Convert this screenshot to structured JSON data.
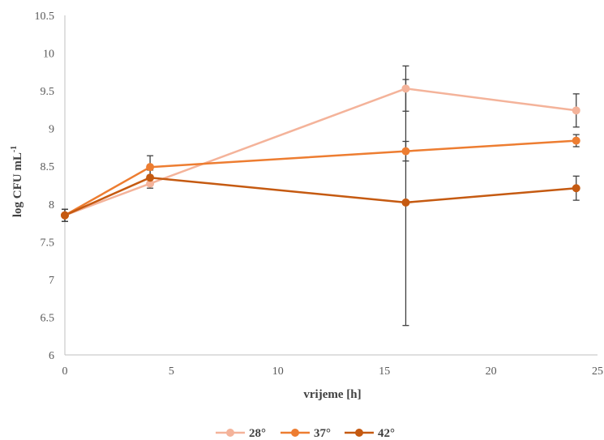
{
  "chart_data": {
    "type": "line",
    "title": "",
    "xlabel": "vrijeme [h]",
    "ylabel_main": "log CFU mL",
    "ylabel_sup": "-1",
    "xlim": [
      0,
      25
    ],
    "ylim": [
      6,
      10.5
    ],
    "xticks": [
      "0",
      "5",
      "10",
      "15",
      "20",
      "25"
    ],
    "yticks": [
      "6",
      "6.5",
      "7",
      "7.5",
      "8",
      "8.5",
      "9",
      "9.5",
      "10",
      "10.5"
    ],
    "grid": false,
    "legend_position": "bottom",
    "series": [
      {
        "name": "28°",
        "color": "#f4b39a",
        "points": [
          {
            "x": 0,
            "y": 7.85,
            "err": 0.08
          },
          {
            "x": 4,
            "y": 8.27,
            "err": 0.06
          },
          {
            "x": 16,
            "y": 9.53,
            "err": 0.3
          },
          {
            "x": 24,
            "y": 9.24,
            "err": 0.22
          }
        ]
      },
      {
        "name": "37°",
        "color": "#ed7d31",
        "points": [
          {
            "x": 0,
            "y": 7.85,
            "err": 0.08
          },
          {
            "x": 4,
            "y": 8.49,
            "err": 0.15
          },
          {
            "x": 16,
            "y": 8.7,
            "err": 0.13
          },
          {
            "x": 24,
            "y": 8.84,
            "err": 0.08
          }
        ]
      },
      {
        "name": "42°",
        "color": "#c55a11",
        "points": [
          {
            "x": 0,
            "y": 7.85,
            "err": 0.08
          },
          {
            "x": 4,
            "y": 8.35,
            "err": 0.1
          },
          {
            "x": 16,
            "y": 8.02,
            "err": 1.63
          },
          {
            "x": 24,
            "y": 8.21,
            "err": 0.16
          }
        ]
      }
    ]
  }
}
